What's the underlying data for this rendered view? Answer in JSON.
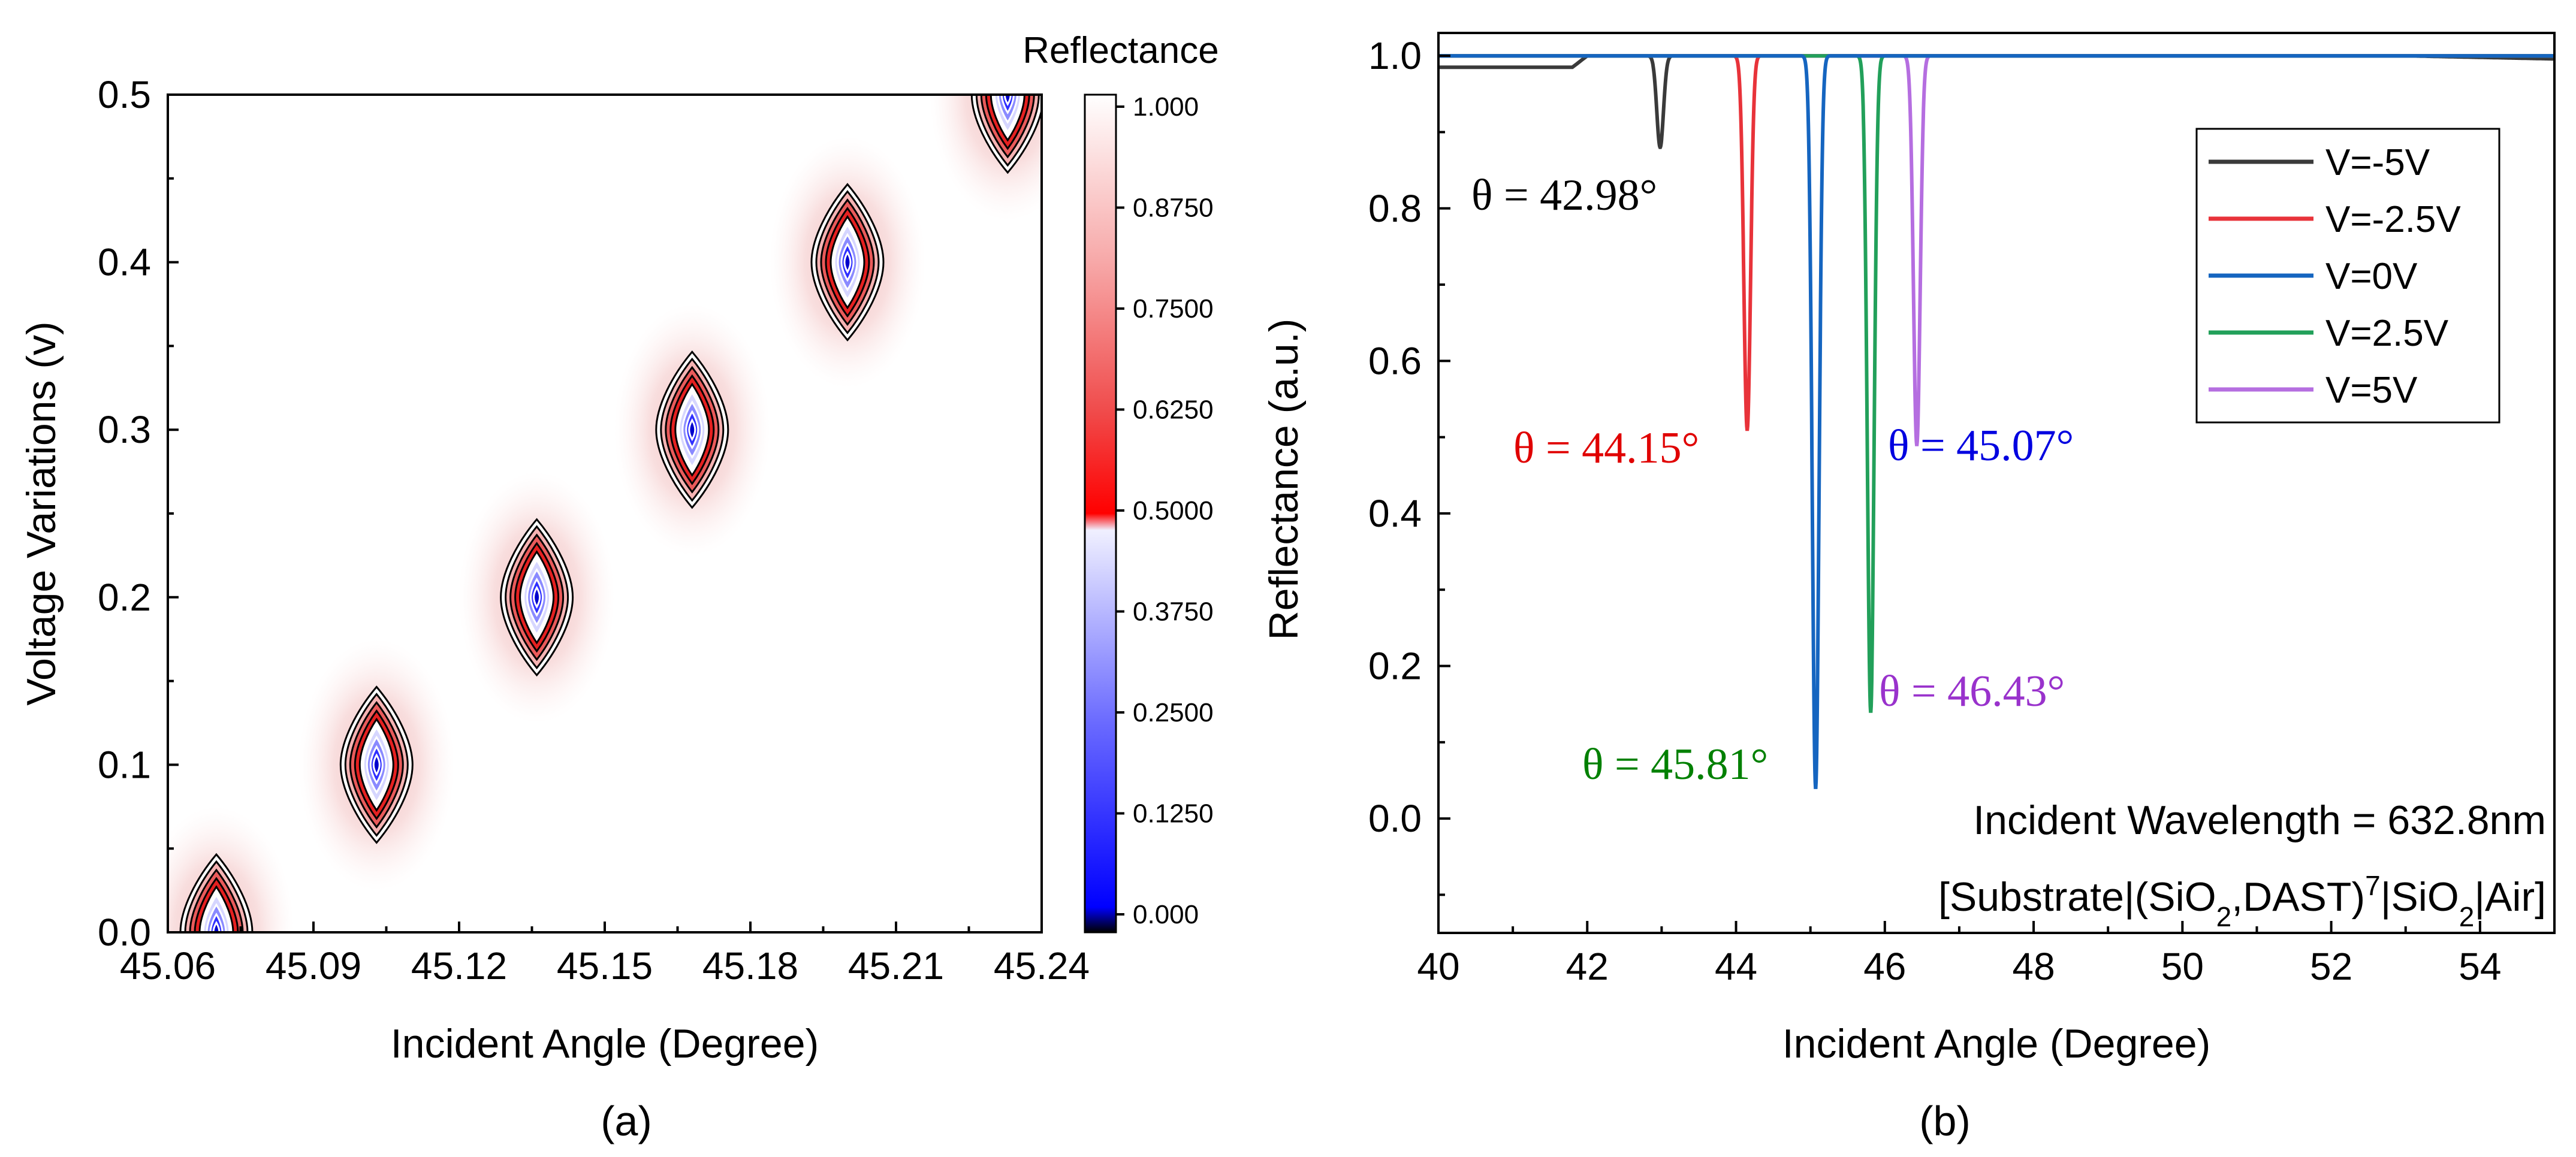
{
  "chart_data": [
    {
      "type": "heatmap",
      "title": "",
      "xlabel": "Incident Angle (Degree)",
      "ylabel": "Voltage Variations (v)",
      "xlim": [
        45.06,
        45.24
      ],
      "ylim": [
        0.0,
        0.5
      ],
      "xticks": [
        "45.06",
        "45.09",
        "45.12",
        "45.15",
        "45.18",
        "45.21",
        "45.24"
      ],
      "yticks": [
        "0.0",
        "0.1",
        "0.2",
        "0.3",
        "0.4",
        "0.5"
      ],
      "colorbar": {
        "title": "Reflectance",
        "range": [
          0.0,
          1.0
        ],
        "ticks": [
          "0.000",
          "0.1250",
          "0.2500",
          "0.3750",
          "0.5000",
          "0.6250",
          "0.7500",
          "0.8750",
          "1.000"
        ]
      },
      "resonances": [
        {
          "angle": 45.07,
          "voltage": 0.0
        },
        {
          "angle": 45.103,
          "voltage": 0.1
        },
        {
          "angle": 45.136,
          "voltage": 0.2
        },
        {
          "angle": 45.168,
          "voltage": 0.3
        },
        {
          "angle": 45.2,
          "voltage": 0.4
        },
        {
          "angle": 45.233,
          "voltage": 0.5
        }
      ],
      "panel_label": "(a)"
    },
    {
      "type": "line",
      "title": "",
      "xlabel": "Incident Angle (Degree)",
      "ylabel": "Reflectance (a.u.)",
      "xlim": [
        40,
        55
      ],
      "ylim": [
        -0.15,
        1.03
      ],
      "xticks": [
        "40",
        "42",
        "44",
        "46",
        "48",
        "50",
        "52",
        "54"
      ],
      "yticks": [
        "0.0",
        "0.2",
        "0.4",
        "0.6",
        "0.8",
        "1.0"
      ],
      "series": [
        {
          "name": "V=-5V",
          "color": "#3a3a3a",
          "dip_angle": 42.98,
          "dip_min": 0.88,
          "label": "θ = 42.98°"
        },
        {
          "name": "V=-2.5V",
          "color": "#e8333a",
          "dip_angle": 44.15,
          "dip_min": 0.51,
          "label": "θ = 44.15°"
        },
        {
          "name": "V=0V",
          "color": "#1565c0",
          "dip_angle": 45.07,
          "dip_min": 0.04,
          "label": "θ = 45.07°"
        },
        {
          "name": "V=2.5V",
          "color": "#22a05a",
          "dip_angle": 45.81,
          "dip_min": 0.14,
          "label": "θ = 45.81°"
        },
        {
          "name": "V=5V",
          "color": "#b56ee0",
          "dip_angle": 46.43,
          "dip_min": 0.49,
          "label": "θ = 46.43°"
        }
      ],
      "annotation_colors": [
        "#000000",
        "#e00000",
        "#0000e0",
        "#008000",
        "#9932cc"
      ],
      "note_wavelength": "Incident Wavelength = 632.8nm",
      "note_structure": "[Substrate|(SiO2,DAST)7|SiO2|Air]",
      "panel_label": "(b)"
    }
  ]
}
